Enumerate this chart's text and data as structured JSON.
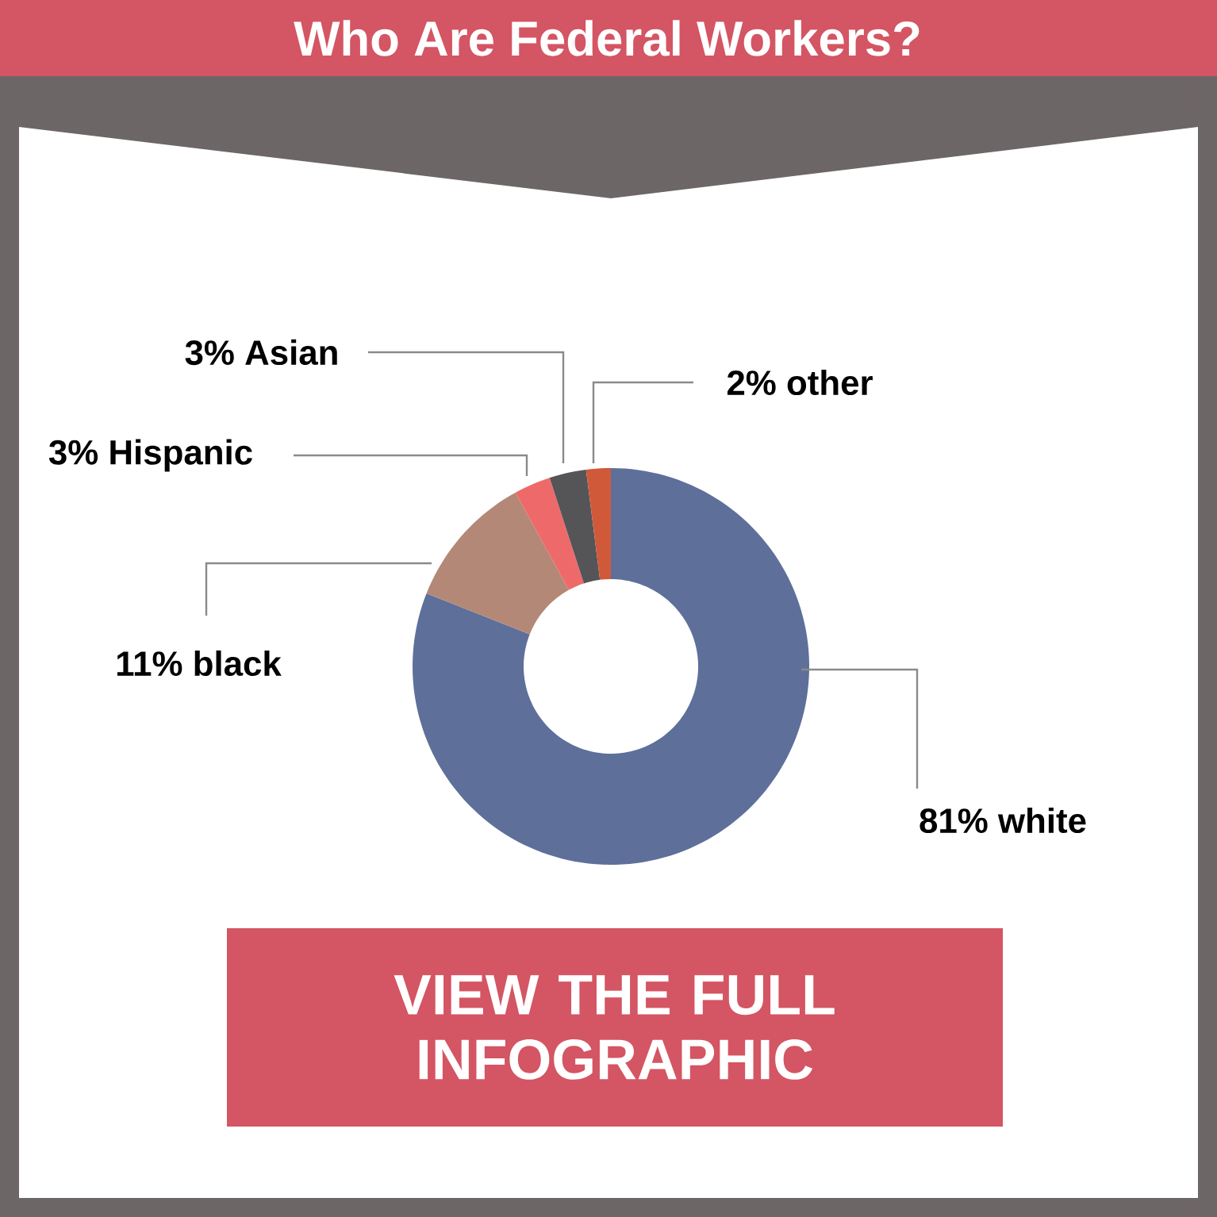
{
  "chart_data": {
    "type": "donut",
    "title": "Who Are Federal Workers?",
    "categories": [
      "white",
      "black",
      "Hispanic",
      "Asian",
      "other"
    ],
    "values": [
      81,
      11,
      3,
      3,
      2
    ],
    "value_labels": [
      "81%",
      "11%",
      "3%",
      "3%",
      "2%"
    ],
    "colors": [
      "#5e6f9a",
      "#b48877",
      "#ee6a6a",
      "#555558",
      "#d0593a"
    ],
    "annotations": [
      "VIEW THE FULL INFOGRAPHIC"
    ]
  }
}
